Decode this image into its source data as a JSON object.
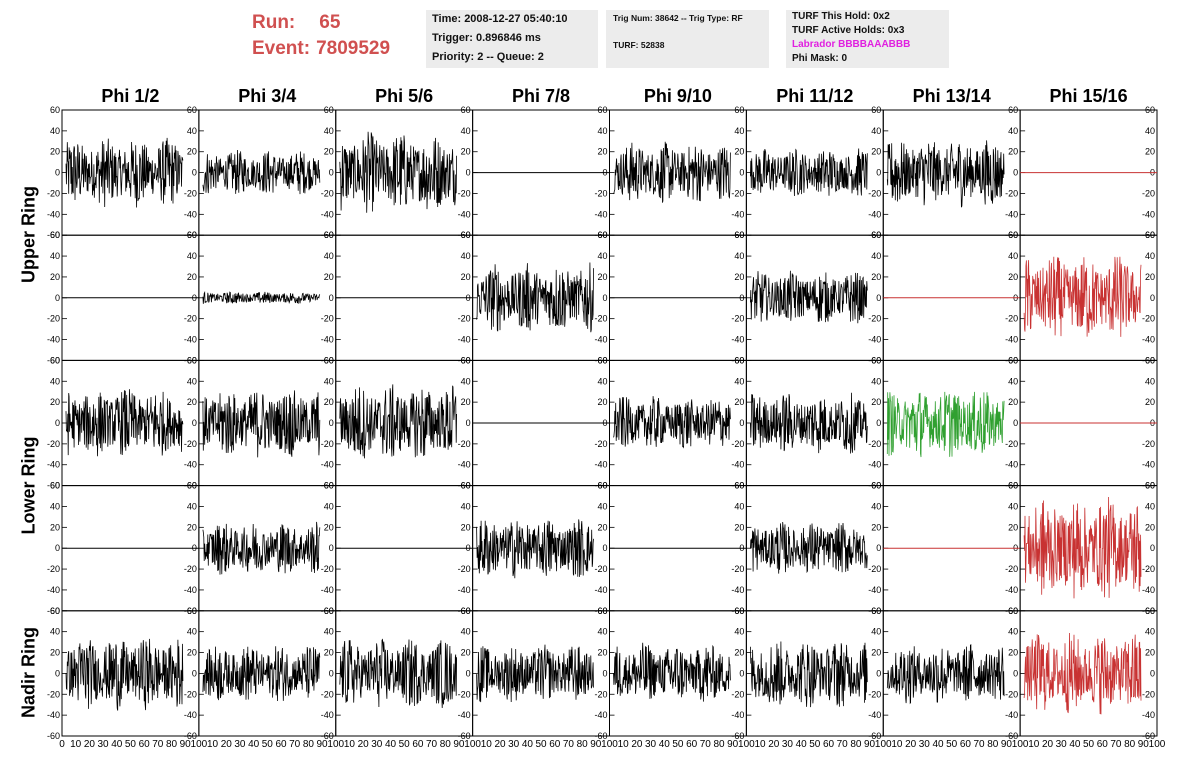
{
  "header": {
    "run_label": "Run:",
    "run_value": "65",
    "event_label": "Event:",
    "event_value": "7809529"
  },
  "info_time": {
    "time": "Time: 2008-12-27 05:40:10",
    "trigger": "Trigger: 0.896846 ms",
    "priority": "Priority: 2 -- Queue: 2"
  },
  "info_trig": {
    "trig": "Trig Num: 38642 -- Trig Type: RF",
    "turf": "TURF: 52838"
  },
  "info_turf": {
    "this_hold": "TURF This Hold: 0x2",
    "active_holds": "TURF Active Holds: 0x3",
    "labrador": "Labrador BBBBAAABBB",
    "phi_mask": "Phi Mask: 0"
  },
  "columns": [
    "Phi 1/2",
    "Phi 3/4",
    "Phi 5/6",
    "Phi 7/8",
    "Phi 9/10",
    "Phi 11/12",
    "Phi 13/14",
    "Phi 15/16"
  ],
  "rows": [
    "Upper Ring",
    "Lower Ring",
    "Nadir Ring"
  ],
  "colors": {
    "default_trace": "#000000",
    "red_trace": "#c83232",
    "green_trace": "#30a030",
    "header_red": "#d05050",
    "magenta": "#e020e0",
    "info_bg": "#ececec"
  },
  "chart_data": {
    "type": "line",
    "ylim": [
      -60,
      60
    ],
    "xlim": [
      0,
      100
    ],
    "y_ticks": [
      -60,
      -40,
      -20,
      0,
      20,
      40,
      60
    ],
    "x_ticks": [
      0,
      10,
      20,
      30,
      40,
      50,
      60,
      70,
      80,
      90,
      100
    ],
    "x_tick_labels": [
      "0",
      "10",
      "20",
      "30",
      "40",
      "50",
      "60",
      "70",
      "80",
      "90",
      "100"
    ],
    "panels": [
      [
        {
          "kind": "noise",
          "amp": 34,
          "color": "black"
        },
        {
          "kind": "noise",
          "amp": 22,
          "color": "black"
        },
        {
          "kind": "noise",
          "amp": 40,
          "color": "black"
        },
        {
          "kind": "flat",
          "amp": 0,
          "color": "black"
        },
        {
          "kind": "noise",
          "amp": 30,
          "color": "black"
        },
        {
          "kind": "noise",
          "amp": 24,
          "color": "black"
        },
        {
          "kind": "noise",
          "amp": 34,
          "color": "black"
        },
        {
          "kind": "flat",
          "amp": 0,
          "color": "red"
        }
      ],
      [
        {
          "kind": "flat",
          "amp": 0,
          "color": "black"
        },
        {
          "kind": "noise",
          "amp": 6,
          "color": "black"
        },
        {
          "kind": "flat",
          "amp": 0,
          "color": "black"
        },
        {
          "kind": "noise",
          "amp": 34,
          "color": "black"
        },
        {
          "kind": "flat",
          "amp": 0,
          "color": "black"
        },
        {
          "kind": "noise",
          "amp": 26,
          "color": "black"
        },
        {
          "kind": "flat",
          "amp": 0,
          "color": "red"
        },
        {
          "kind": "noise",
          "amp": 42,
          "color": "red"
        }
      ],
      [
        {
          "kind": "noise",
          "amp": 34,
          "color": "black"
        },
        {
          "kind": "noise",
          "amp": 34,
          "color": "black"
        },
        {
          "kind": "noise",
          "amp": 38,
          "color": "black"
        },
        {
          "kind": "flat",
          "amp": 0,
          "color": "black"
        },
        {
          "kind": "noise",
          "amp": 26,
          "color": "black"
        },
        {
          "kind": "noise",
          "amp": 30,
          "color": "black"
        },
        {
          "kind": "noise",
          "amp": 34,
          "color": "green"
        },
        {
          "kind": "flat",
          "amp": 0,
          "color": "red"
        }
      ],
      [
        {
          "kind": "flat",
          "amp": 0,
          "color": "black"
        },
        {
          "kind": "noise",
          "amp": 26,
          "color": "black"
        },
        {
          "kind": "flat",
          "amp": 0,
          "color": "black"
        },
        {
          "kind": "noise",
          "amp": 30,
          "color": "black"
        },
        {
          "kind": "flat",
          "amp": 0,
          "color": "black"
        },
        {
          "kind": "noise",
          "amp": 26,
          "color": "black"
        },
        {
          "kind": "flat",
          "amp": 0,
          "color": "red"
        },
        {
          "kind": "noise",
          "amp": 50,
          "color": "red"
        }
      ],
      [
        {
          "kind": "noise",
          "amp": 36,
          "color": "black"
        },
        {
          "kind": "noise",
          "amp": 28,
          "color": "black"
        },
        {
          "kind": "noise",
          "amp": 34,
          "color": "black"
        },
        {
          "kind": "noise",
          "amp": 28,
          "color": "black"
        },
        {
          "kind": "noise",
          "amp": 30,
          "color": "black"
        },
        {
          "kind": "noise",
          "amp": 34,
          "color": "black"
        },
        {
          "kind": "noise",
          "amp": 30,
          "color": "black"
        },
        {
          "kind": "noise",
          "amp": 40,
          "color": "red"
        }
      ]
    ]
  }
}
